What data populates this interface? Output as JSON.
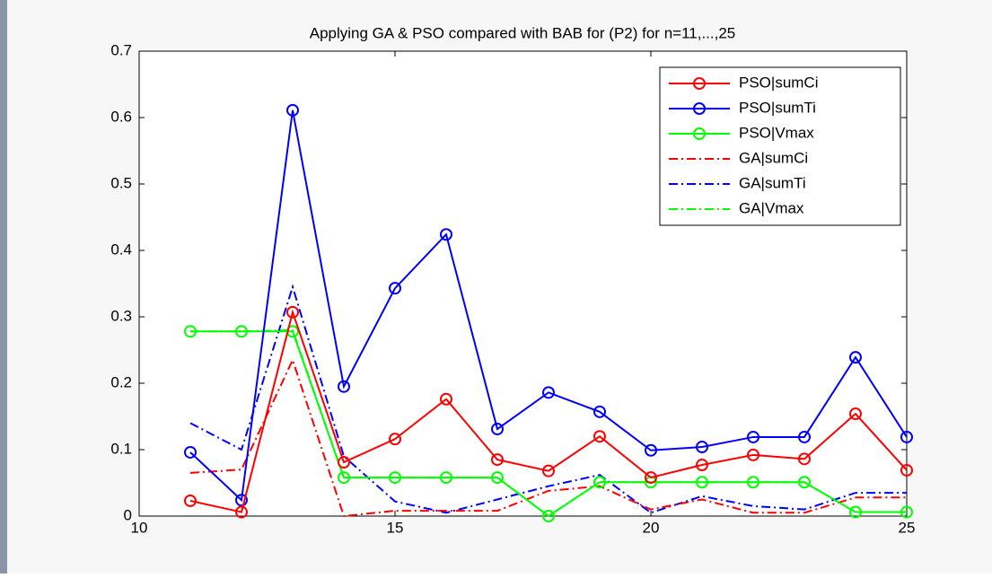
{
  "chart_data": {
    "type": "line",
    "title": "Applying GA & PSO compared with BAB for (P2) for n=11,...,25",
    "x": [
      11,
      12,
      13,
      14,
      15,
      16,
      17,
      18,
      19,
      20,
      21,
      22,
      23,
      24,
      25
    ],
    "series": [
      {
        "name": "PSO|sumCi",
        "color": "#ff0000",
        "style": "solid-circle",
        "values": [
          0.023,
          0.006,
          0.307,
          0.081,
          0.116,
          0.176,
          0.085,
          0.068,
          0.12,
          0.058,
          0.077,
          0.092,
          0.086,
          0.154,
          0.069
        ]
      },
      {
        "name": "PSO|sumTi",
        "color": "#0000ff",
        "style": "solid-circle",
        "values": [
          0.096,
          0.024,
          0.611,
          0.195,
          0.343,
          0.424,
          0.131,
          0.186,
          0.157,
          0.099,
          0.104,
          0.119,
          0.119,
          0.239,
          0.119
        ]
      },
      {
        "name": "PSO|Vmax",
        "color": "#00ff00",
        "style": "solid-circle",
        "values": [
          0.278,
          0.278,
          0.278,
          0.058,
          0.058,
          0.058,
          0.058,
          0,
          0.051,
          0.051,
          0.051,
          0.051,
          0.051,
          0.006,
          0.006
        ]
      },
      {
        "name": "GA|sumCi",
        "color": "#ff0000",
        "style": "dashdot",
        "values": [
          0.065,
          0.07,
          0.235,
          0,
          0.008,
          0.008,
          0.008,
          0.038,
          0.045,
          0.01,
          0.025,
          0.005,
          0.005,
          0.028,
          0.028
        ]
      },
      {
        "name": "GA|sumTi",
        "color": "#0000ff",
        "style": "dashdot",
        "values": [
          0.14,
          0.1,
          0.345,
          0.09,
          0.022,
          0.005,
          0.025,
          0.045,
          0.062,
          0.005,
          0.03,
          0.015,
          0.01,
          0.035,
          0.035
        ]
      },
      {
        "name": "GA|Vmax",
        "color": "#00ff00",
        "style": "dashdot",
        "values": [
          0.278,
          0.278,
          0.28,
          0.058,
          0.058,
          0.058,
          0.058,
          0,
          0.051,
          0.051,
          0.051,
          0.051,
          0.051,
          0.006,
          0.006
        ]
      }
    ],
    "xlim": [
      10,
      25
    ],
    "xticks": [
      10,
      15,
      20,
      25
    ],
    "ylim": [
      0,
      0.7
    ],
    "yticks": [
      0,
      0.1,
      0.2,
      0.3,
      0.4,
      0.5,
      0.6,
      0.7
    ],
    "legend": "top-right"
  }
}
